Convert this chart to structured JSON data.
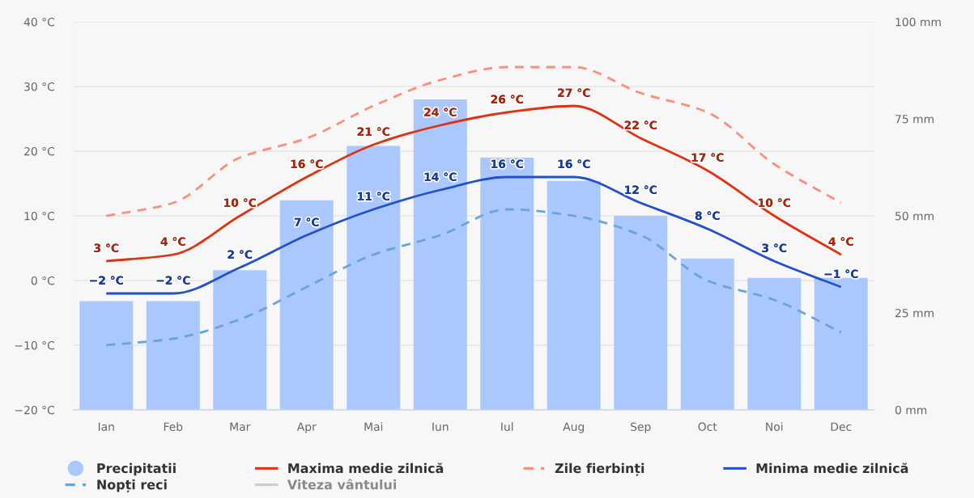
{
  "chart_data": {
    "type": "bar",
    "categories": [
      "Ian",
      "Feb",
      "Mar",
      "Apr",
      "Mai",
      "Iun",
      "Iul",
      "Aug",
      "Sep",
      "Oct",
      "Noi",
      "Dec"
    ],
    "series": [
      {
        "name": "Precipitatii",
        "axis": "y2",
        "color": "#aac8fd",
        "values": [
          28,
          28,
          36,
          54,
          68,
          80,
          65,
          59,
          50,
          39,
          34,
          34
        ]
      },
      {
        "name": "Maxima medie zilnică",
        "type": "line",
        "color": "#e0320f",
        "line_style": "solid",
        "values": [
          3,
          4,
          10,
          16,
          21,
          24,
          26,
          27,
          22,
          17,
          10,
          4
        ],
        "value_labels": [
          "3 °C",
          "4 °C",
          "10 °C",
          "16 °C",
          "21 °C",
          "24 °C",
          "26 °C",
          "27 °C",
          "22 °C",
          "17 °C",
          "10 °C",
          "4 °C"
        ]
      },
      {
        "name": "Zile fierbinți",
        "type": "line",
        "color": "#fa8f7c",
        "line_style": "dashed",
        "values": [
          10,
          12,
          19,
          22,
          27,
          31,
          33,
          33,
          29,
          26,
          18,
          12
        ]
      },
      {
        "name": "Minima medie zilnică",
        "type": "line",
        "color": "#2350cc",
        "line_style": "solid",
        "values": [
          -2,
          -2,
          2,
          7,
          11,
          14,
          16,
          16,
          12,
          8,
          3,
          -1
        ],
        "value_labels": [
          "−2 °C",
          "−2 °C",
          "2 °C",
          "7 °C",
          "11 °C",
          "14 °C",
          "16 °C",
          "16 °C",
          "12 °C",
          "8 °C",
          "3 °C",
          "−1 °C"
        ]
      },
      {
        "name": "Nopți reci",
        "type": "line",
        "color": "#6aa3de",
        "line_style": "dashed",
        "values": [
          -10,
          -9,
          -6,
          -1,
          4,
          7,
          11,
          10,
          7,
          0,
          -3,
          -8
        ]
      },
      {
        "name": "Viteza vântului",
        "type": "line",
        "color": "#cccccc",
        "line_style": "solid",
        "values": [
          null,
          null,
          null,
          null,
          null,
          null,
          null,
          null,
          null,
          null,
          null,
          null
        ]
      }
    ],
    "ylim": [
      -20,
      40
    ],
    "yticks": [
      {
        "value": -20,
        "label": "−20 °C"
      },
      {
        "value": -10,
        "label": "−10 °C"
      },
      {
        "value": 0,
        "label": "0 °C"
      },
      {
        "value": 10,
        "label": "10 °C"
      },
      {
        "value": 20,
        "label": "20 °C"
      },
      {
        "value": 30,
        "label": "30 °C"
      },
      {
        "value": 40,
        "label": "40 °C"
      }
    ],
    "y2lim": [
      0,
      100
    ],
    "y2ticks": [
      {
        "value": 0,
        "label": "0 mm"
      },
      {
        "value": 25,
        "label": "25 mm"
      },
      {
        "value": 50,
        "label": "50 mm"
      },
      {
        "value": 75,
        "label": "75 mm"
      },
      {
        "value": 100,
        "label": "100 mm"
      }
    ],
    "grid": "y",
    "legend": "bottom"
  }
}
